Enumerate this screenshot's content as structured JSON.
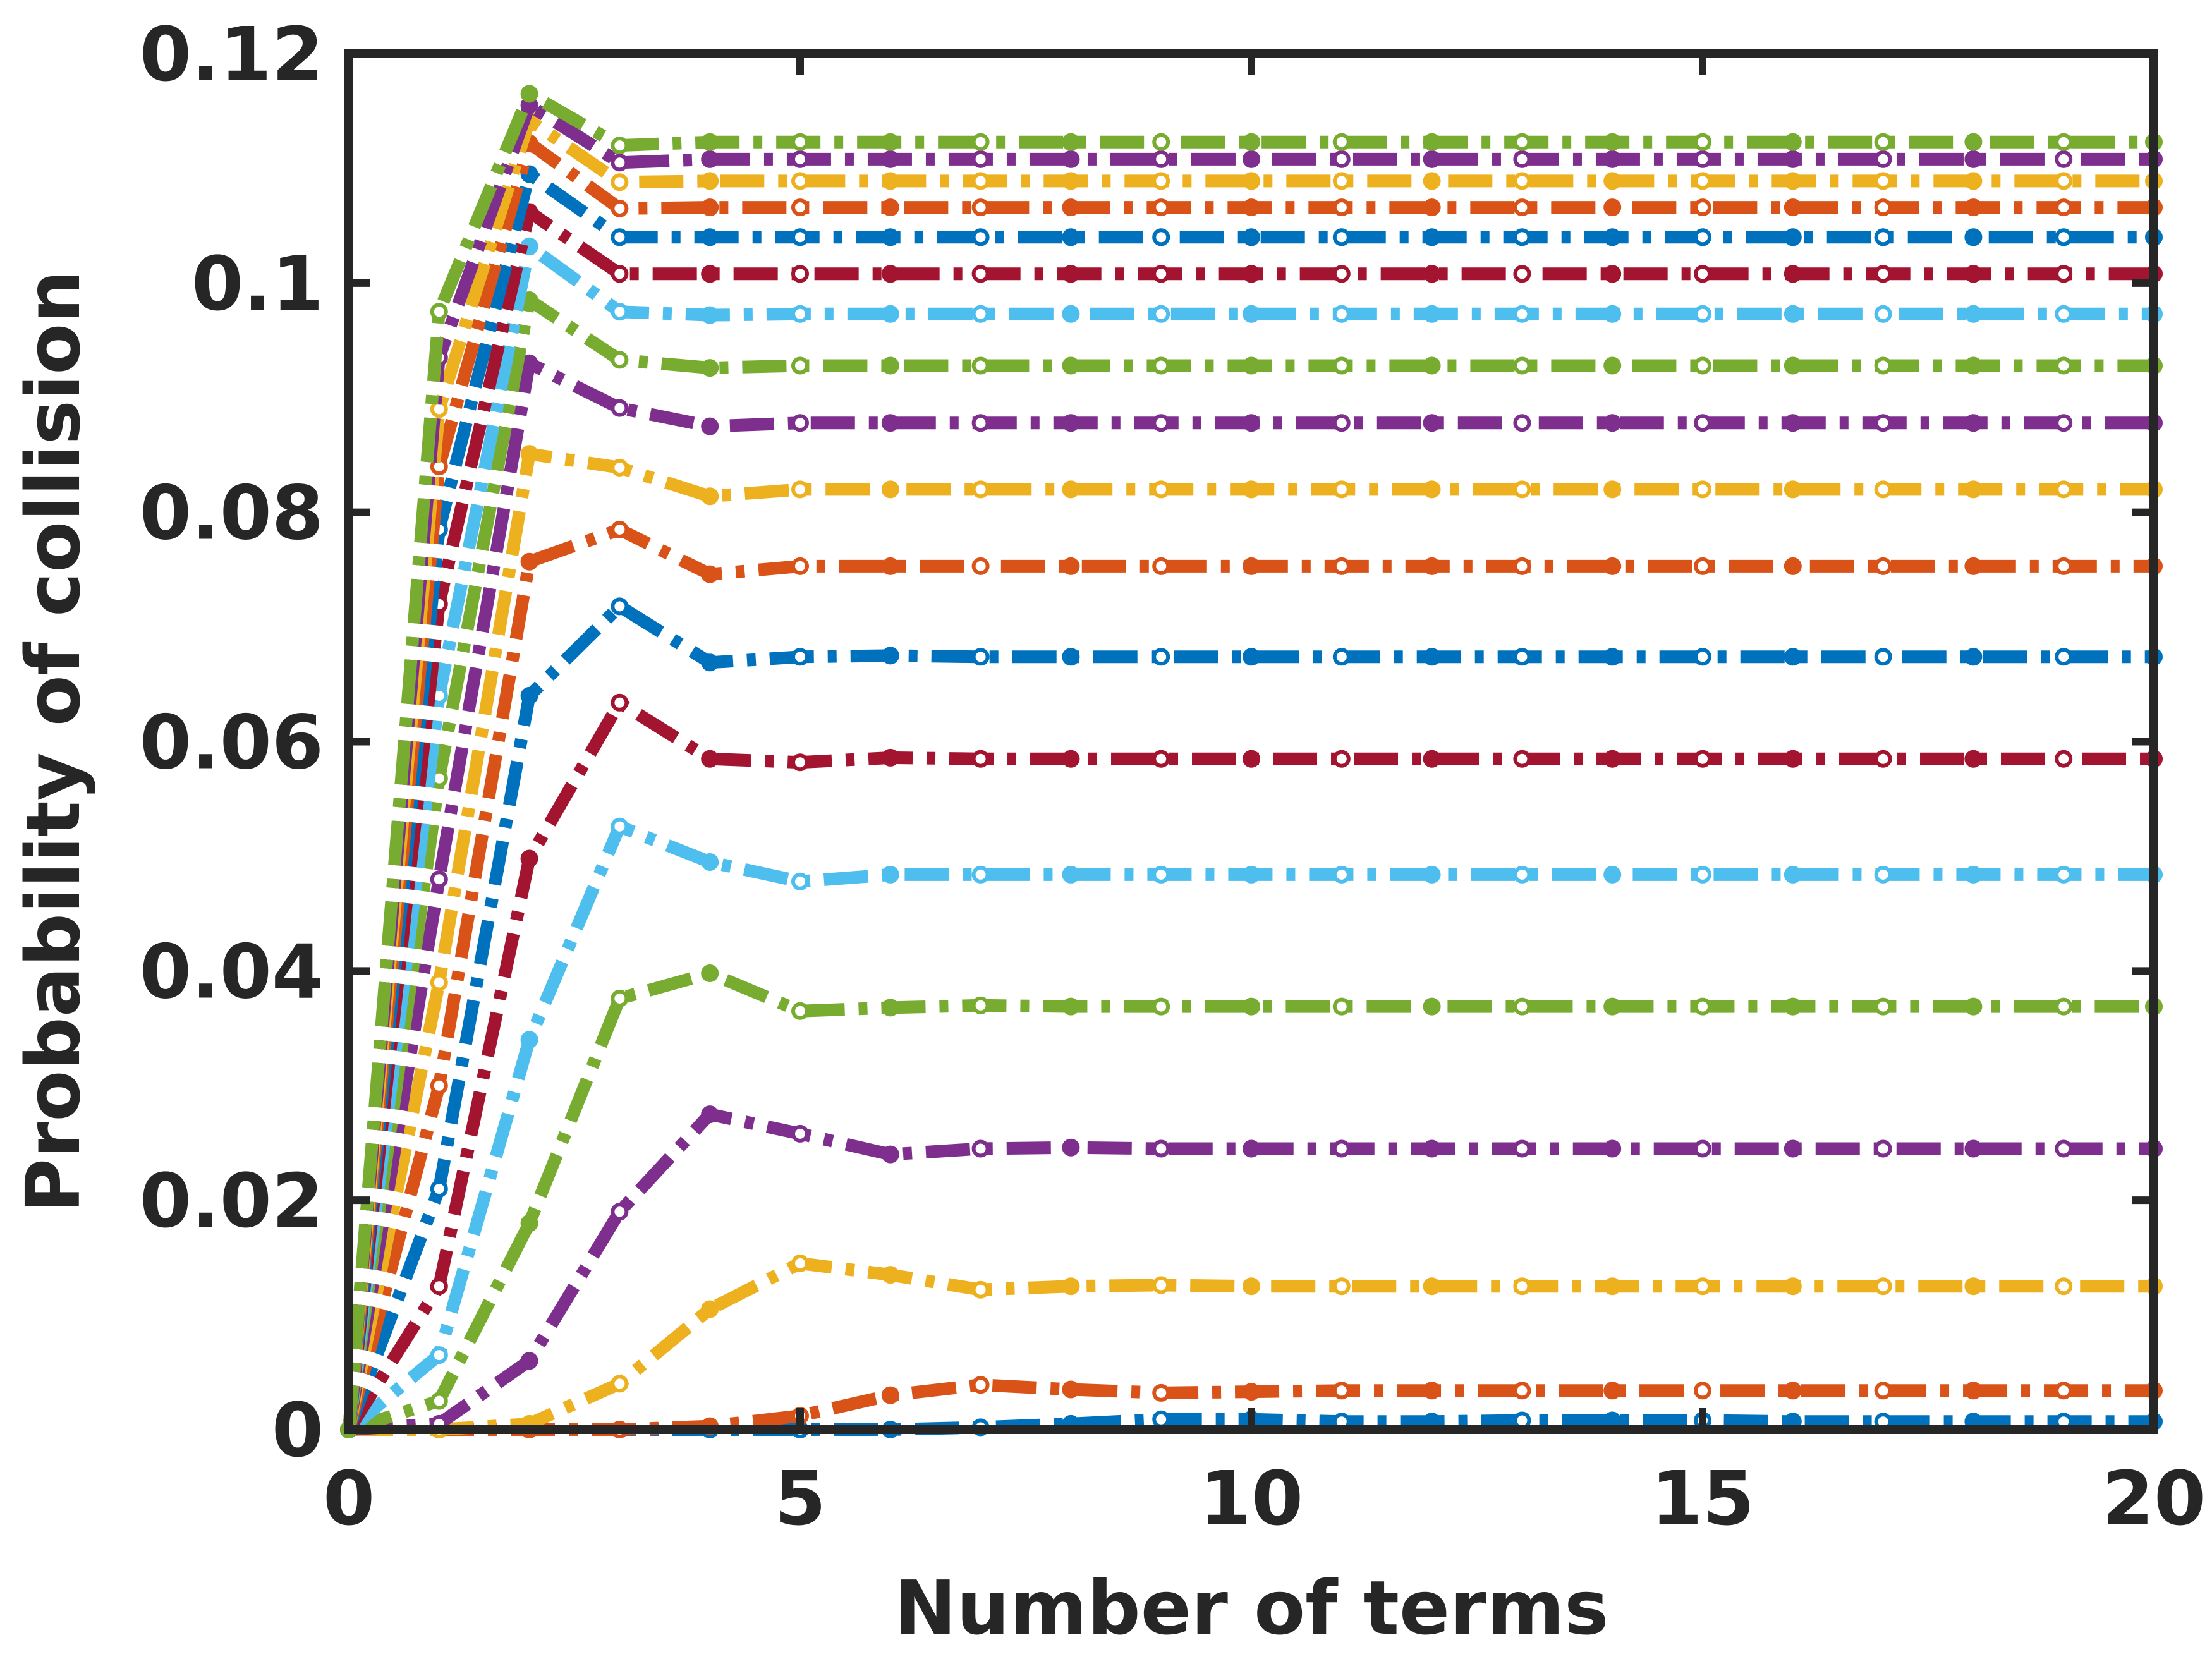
{
  "chart_data": {
    "type": "line",
    "title": "",
    "xlabel": "Number of terms",
    "ylabel": "Probability of collision",
    "xlim": [
      0,
      20
    ],
    "ylim": [
      0,
      0.12
    ],
    "x_ticks": [
      0,
      5,
      10,
      15,
      20
    ],
    "x_tick_labels": [
      "0",
      "5",
      "10",
      "15",
      "20"
    ],
    "y_ticks": [
      0,
      0.02,
      0.04,
      0.06,
      0.08,
      0.1,
      0.12
    ],
    "y_tick_labels": [
      "0",
      "0.02",
      "0.04",
      "0.06",
      "0.08",
      "0.1",
      "0.12"
    ],
    "grid": false,
    "legend": "none",
    "line_style": "dash-dot",
    "marker": "circle",
    "x": [
      0,
      1,
      2,
      3,
      4,
      5,
      6,
      7,
      8,
      9,
      10,
      11,
      12,
      13,
      14,
      15,
      16,
      17,
      18,
      19,
      20
    ],
    "series": [
      {
        "color": "#0072BD",
        "values": [
          0,
          0,
          0,
          0,
          0,
          0,
          0,
          0.0002,
          0.0005,
          0.0009,
          0.0009,
          0.0007,
          0.0007,
          0.0008,
          0.0008,
          0.0008,
          0.0007,
          0.0007,
          0.0007,
          0.0007,
          0.0007
        ]
      },
      {
        "color": "#D95319",
        "values": [
          0,
          0,
          0,
          0,
          0.0003,
          0.0012,
          0.003,
          0.0039,
          0.0035,
          0.0032,
          0.0033,
          0.0034,
          0.0034,
          0.0034,
          0.0034,
          0.0034,
          0.0034,
          0.0034,
          0.0034,
          0.0034,
          0.0034
        ]
      },
      {
        "color": "#EDB120",
        "values": [
          0,
          0,
          0.0005,
          0.004,
          0.0105,
          0.0145,
          0.0135,
          0.0122,
          0.0125,
          0.0126,
          0.0125,
          0.0125,
          0.0125,
          0.0125,
          0.0125,
          0.0125,
          0.0125,
          0.0125,
          0.0125,
          0.0125,
          0.0125
        ]
      },
      {
        "color": "#7E2F8E",
        "values": [
          0,
          0.0005,
          0.006,
          0.019,
          0.0275,
          0.0258,
          0.024,
          0.0245,
          0.0246,
          0.0245,
          0.0245,
          0.0245,
          0.0245,
          0.0245,
          0.0245,
          0.0245,
          0.0245,
          0.0245,
          0.0245,
          0.0245,
          0.0245
        ]
      },
      {
        "color": "#77AC30",
        "values": [
          0,
          0.0025,
          0.018,
          0.0376,
          0.0398,
          0.0365,
          0.0368,
          0.037,
          0.0369,
          0.0369,
          0.0369,
          0.0369,
          0.0369,
          0.0369,
          0.0369,
          0.0369,
          0.0369,
          0.0369,
          0.0369,
          0.0369,
          0.0369
        ]
      },
      {
        "color": "#4DBEEE",
        "values": [
          0,
          0.0065,
          0.034,
          0.0526,
          0.0495,
          0.0478,
          0.0484,
          0.0484,
          0.0484,
          0.0484,
          0.0484,
          0.0484,
          0.0484,
          0.0484,
          0.0484,
          0.0484,
          0.0484,
          0.0484,
          0.0484,
          0.0484,
          0.0484
        ]
      },
      {
        "color": "#A2142F",
        "values": [
          0,
          0.0125,
          0.0498,
          0.0634,
          0.0585,
          0.0582,
          0.0586,
          0.0585,
          0.0585,
          0.0585,
          0.0585,
          0.0585,
          0.0585,
          0.0585,
          0.0585,
          0.0585,
          0.0585,
          0.0585,
          0.0585,
          0.0585,
          0.0585
        ]
      },
      {
        "color": "#0072BD",
        "values": [
          0,
          0.021,
          0.064,
          0.0718,
          0.0669,
          0.0674,
          0.0675,
          0.0674,
          0.0674,
          0.0674,
          0.0674,
          0.0674,
          0.0674,
          0.0674,
          0.0674,
          0.0674,
          0.0674,
          0.0674,
          0.0674,
          0.0674,
          0.0674
        ]
      },
      {
        "color": "#D95319",
        "values": [
          0,
          0.03,
          0.0757,
          0.0785,
          0.0746,
          0.0753,
          0.0753,
          0.0753,
          0.0753,
          0.0753,
          0.0753,
          0.0753,
          0.0753,
          0.0753,
          0.0753,
          0.0753,
          0.0753,
          0.0753,
          0.0753,
          0.0753,
          0.0753
        ]
      },
      {
        "color": "#EDB120",
        "values": [
          0,
          0.039,
          0.0851,
          0.0839,
          0.0814,
          0.082,
          0.082,
          0.082,
          0.082,
          0.082,
          0.082,
          0.082,
          0.082,
          0.082,
          0.082,
          0.082,
          0.082,
          0.082,
          0.082,
          0.082,
          0.082
        ]
      },
      {
        "color": "#7E2F8E",
        "values": [
          0,
          0.048,
          0.093,
          0.0891,
          0.0875,
          0.0878,
          0.0878,
          0.0878,
          0.0878,
          0.0878,
          0.0878,
          0.0878,
          0.0878,
          0.0878,
          0.0878,
          0.0878,
          0.0878,
          0.0878,
          0.0878,
          0.0878,
          0.0878
        ]
      },
      {
        "color": "#77AC30",
        "values": [
          0,
          0.0568,
          0.0985,
          0.0933,
          0.0926,
          0.0928,
          0.0928,
          0.0928,
          0.0928,
          0.0928,
          0.0928,
          0.0928,
          0.0928,
          0.0928,
          0.0928,
          0.0928,
          0.0928,
          0.0928,
          0.0928,
          0.0928,
          0.0928
        ]
      },
      {
        "color": "#4DBEEE",
        "values": [
          0,
          0.064,
          0.1032,
          0.0975,
          0.0972,
          0.0973,
          0.0973,
          0.0973,
          0.0973,
          0.0973,
          0.0973,
          0.0973,
          0.0973,
          0.0973,
          0.0973,
          0.0973,
          0.0973,
          0.0973,
          0.0973,
          0.0973,
          0.0973
        ]
      },
      {
        "color": "#A2142F",
        "values": [
          0,
          0.072,
          0.1062,
          0.1008,
          0.1008,
          0.1008,
          0.1008,
          0.1008,
          0.1008,
          0.1008,
          0.1008,
          0.1008,
          0.1008,
          0.1008,
          0.1008,
          0.1008,
          0.1008,
          0.1008,
          0.1008,
          0.1008,
          0.1008
        ]
      },
      {
        "color": "#0072BD",
        "values": [
          0,
          0.0785,
          0.1095,
          0.104,
          0.104,
          0.104,
          0.104,
          0.104,
          0.104,
          0.104,
          0.104,
          0.104,
          0.104,
          0.104,
          0.104,
          0.104,
          0.104,
          0.104,
          0.104,
          0.104,
          0.104
        ]
      },
      {
        "color": "#D95319",
        "values": [
          0,
          0.084,
          0.1122,
          0.1065,
          0.1066,
          0.1066,
          0.1066,
          0.1066,
          0.1066,
          0.1066,
          0.1066,
          0.1066,
          0.1066,
          0.1066,
          0.1066,
          0.1066,
          0.1066,
          0.1066,
          0.1066,
          0.1066,
          0.1066
        ]
      },
      {
        "color": "#EDB120",
        "values": [
          0,
          0.089,
          0.1142,
          0.1088,
          0.1089,
          0.1089,
          0.1089,
          0.1089,
          0.1089,
          0.1089,
          0.1089,
          0.1089,
          0.1089,
          0.1089,
          0.1089,
          0.1089,
          0.1089,
          0.1089,
          0.1089,
          0.1089,
          0.1089
        ]
      },
      {
        "color": "#7E2F8E",
        "values": [
          0,
          0.0935,
          0.1155,
          0.1105,
          0.1108,
          0.1108,
          0.1108,
          0.1108,
          0.1108,
          0.1108,
          0.1108,
          0.1108,
          0.1108,
          0.1108,
          0.1108,
          0.1108,
          0.1108,
          0.1108,
          0.1108,
          0.1108,
          0.1108
        ]
      },
      {
        "color": "#77AC30",
        "values": [
          0,
          0.0975,
          0.1165,
          0.112,
          0.1123,
          0.1123,
          0.1123,
          0.1123,
          0.1123,
          0.1123,
          0.1123,
          0.1123,
          0.1123,
          0.1123,
          0.1123,
          0.1123,
          0.1123,
          0.1123,
          0.1123,
          0.1123,
          0.1123
        ]
      }
    ]
  }
}
